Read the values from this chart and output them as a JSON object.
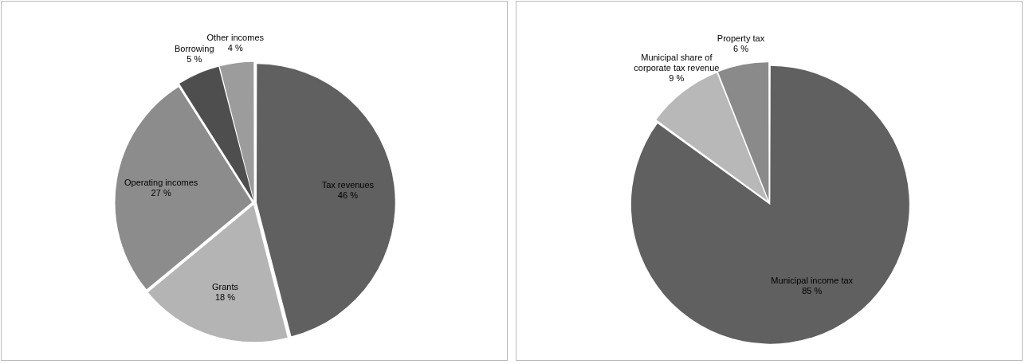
{
  "chart_data": [
    {
      "type": "pie",
      "categories": [
        "Tax revenues",
        "Grants",
        "Operating incomes",
        "Borrowing",
        "Other incomes"
      ],
      "values": [
        46,
        18,
        27,
        5,
        4
      ],
      "value_labels": [
        "46 %",
        "18 %",
        "27 %",
        "5 %",
        "4 %"
      ],
      "colors": [
        "#606060",
        "#b4b4b4",
        "#8c8c8c",
        "#4e4e4e",
        "#9c9c9c"
      ],
      "legend": false
    },
    {
      "type": "pie",
      "categories": [
        "Municipal income tax",
        "Municipal share of corporate tax revenue",
        "Property tax"
      ],
      "values": [
        85,
        9,
        6
      ],
      "value_labels": [
        "85 %",
        "9 %",
        "6 %"
      ],
      "colors": [
        "#606060",
        "#b8b8b8",
        "#8a8a8a"
      ],
      "legend": false
    }
  ]
}
